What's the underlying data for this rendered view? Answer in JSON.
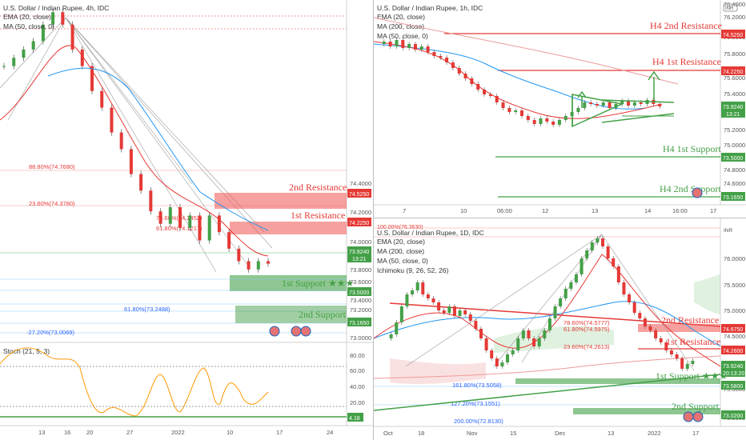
{
  "chart_data": [
    {
      "type": "line",
      "symbol_title": "U.S. Dollar / Indian Rupee, 4h, IDC",
      "indicators": [
        "EMA (20, close)",
        "MA (50, close, 0)"
      ],
      "x_ticks": [
        "13",
        "16",
        "20",
        "27",
        "2022",
        "10",
        "17",
        "24"
      ],
      "y_ticks": [
        "74.4000",
        "74.2000",
        "74.0000",
        "73.8000",
        "73.6000",
        "73.4000",
        "73.2000",
        "73.0000"
      ],
      "close_path": [
        76.3,
        76.4,
        76.5,
        76.6,
        76.8,
        76.95,
        76.8,
        76.5,
        76.3,
        76.0,
        75.8,
        75.5,
        75.3,
        75.0,
        74.8,
        74.55,
        74.4,
        74.6,
        74.35,
        74.5,
        74.2,
        74.5,
        74.3,
        74.1,
        73.95,
        73.85,
        73.95,
        73.92
      ],
      "fib_levels": [
        {
          "label": "88.80%(74.7680)",
          "value": 74.768
        },
        {
          "label": "23.60%(74.3780)",
          "value": 74.378
        },
        {
          "label": "78.60%(74.2452)",
          "value": 74.2452
        },
        {
          "label": "61.80%(74.1217)",
          "value": 74.1217
        },
        {
          "label": "61.80%(73.2488)",
          "value": 73.2488
        },
        {
          "label": "-27.20%(73.0069)",
          "value": 73.0069
        }
      ],
      "zones": [
        {
          "label": "2nd Resistance",
          "price_tag": "74.5250",
          "kind": "resistance"
        },
        {
          "label": "1st Resistance",
          "price_tag": "74.2250",
          "kind": "resistance"
        },
        {
          "label": "1st Support ★★★",
          "price_tag": "73.5000",
          "kind": "support"
        },
        {
          "label": "2nd Support",
          "price_tag": "73.1650",
          "kind": "support"
        }
      ],
      "current_price_tag": "73.9240",
      "countdown_tag": "13:21",
      "oscillator": {
        "title": "Stoch (21, 5, 3)",
        "y_ticks": [
          "80.00",
          "60.00",
          "40.00",
          "20.00"
        ],
        "last_tag": "4.18"
      }
    },
    {
      "type": "line",
      "symbol_title": "U.S. Dollar / Indian Rupee, 1h, IDC",
      "indicators": [
        "EMA (20, close)",
        "MA (200, close)",
        "MA (50, close, 0)"
      ],
      "currency_badge": "INR",
      "x_ticks": [
        "7",
        "10",
        "06:00",
        "12",
        "13",
        "14",
        "16:00",
        "17"
      ],
      "y_ticks": [
        "76.4000",
        "76.2000",
        "76.0000",
        "75.8000",
        "75.6000",
        "75.4000",
        "75.2000",
        "75.0000",
        "74.8000",
        "74.6000",
        "74.4000",
        "74.2000",
        "74.0000",
        "73.8000",
        "73.6000",
        "73.4000",
        "73.2000"
      ],
      "zones": [
        {
          "label": "H4 2nd Resistance",
          "price_tag": "74.5250"
        },
        {
          "label": "H4 1st Resistance",
          "price_tag": "74.2250"
        },
        {
          "label": "H4 1st Support",
          "price_tag": "73.5000"
        },
        {
          "label": "H4 2nd Support",
          "price_tag": "73.1650"
        }
      ],
      "current_price_tag": "73.9240",
      "countdown_tag": "13:21"
    },
    {
      "type": "line",
      "symbol_title": "U.S. Dollar / Indian Rupee, 1D, IDC",
      "indicators": [
        "EMA (20, close)",
        "MA (200, close)",
        "MA (50, close, 0)",
        "Ichimoku (9, 26, 52, 26)"
      ],
      "currency_badge": "INR",
      "x_ticks": [
        "Oct",
        "18",
        "Nov",
        "15",
        "Dec",
        "13",
        "2022",
        "17"
      ],
      "y_ticks": [
        "76.0000",
        "75.5000",
        "75.0000",
        "74.5000",
        "74.0000",
        "73.5000",
        "73.0000"
      ],
      "fib_levels": [
        {
          "label": "100.00%(76.3630)"
        },
        {
          "label": "78.60%(74.5777)"
        },
        {
          "label": "61.80%(74.5975)"
        },
        {
          "label": "23.60%(74.2613)"
        },
        {
          "label": "161.80%(73.5058)"
        },
        {
          "label": "127.20%(73.1551)"
        },
        {
          "label": "200.00%(72.8130)"
        }
      ],
      "zones": [
        {
          "label": "2nd Resistance",
          "price_tag": "74.6750"
        },
        {
          "label": "1st Resistance",
          "price_tag": "74.2600"
        },
        {
          "label": "1st Support ★★★",
          "price_tag": "73.5800"
        },
        {
          "label": "2nd Support",
          "price_tag": "73.0200"
        }
      ],
      "current_price_tag": "73.9240",
      "countdown_tag": "20:13:20"
    }
  ]
}
